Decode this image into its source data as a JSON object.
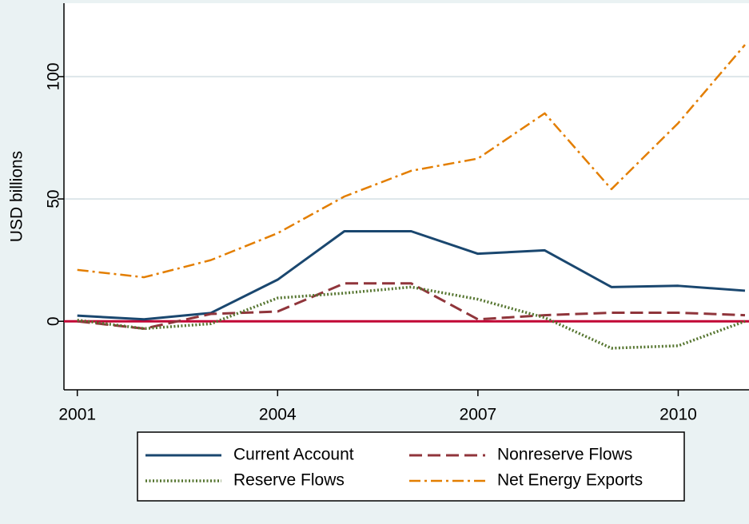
{
  "chart_data": {
    "type": "line",
    "y_label": "USD billions",
    "x": [
      2001,
      2002,
      2003,
      2004,
      2005,
      2006,
      2007,
      2008,
      2009,
      2010,
      2011
    ],
    "series": [
      {
        "name": "Current Account",
        "color": "#1a476f",
        "dash": "solid",
        "values": [
          2.3,
          0.8,
          3.4,
          17,
          36.8,
          36.8,
          27.6,
          29,
          14,
          14.5,
          12.5
        ]
      },
      {
        "name": "Nonreserve Flows",
        "color": "#90353b",
        "dash": "dashed",
        "values": [
          0,
          -3,
          3,
          4,
          15.5,
          15.5,
          0.8,
          2.5,
          3.5,
          3.5,
          2.5
        ]
      },
      {
        "name": "Reserve Flows",
        "color": "#55752f",
        "dash": "dotted",
        "values": [
          0.5,
          -3,
          -1,
          9.5,
          11.5,
          14,
          9,
          1.5,
          -11,
          -10,
          0
        ]
      },
      {
        "name": "Net Energy Exports",
        "color": "#e37e00",
        "dash": "dashdot",
        "values": [
          21,
          18,
          25,
          36,
          51,
          61.5,
          66.5,
          85,
          54,
          81,
          113
        ]
      }
    ],
    "xlim": [
      2000.8,
      2011.06
    ],
    "xticks": [
      2001,
      2004,
      2007,
      2010
    ],
    "ylim": [
      -28,
      130
    ],
    "yticks": [
      0,
      50,
      100
    ],
    "grid": true,
    "reference_line": {
      "value": 0,
      "color": "#c10534"
    },
    "legend": "bottom"
  }
}
